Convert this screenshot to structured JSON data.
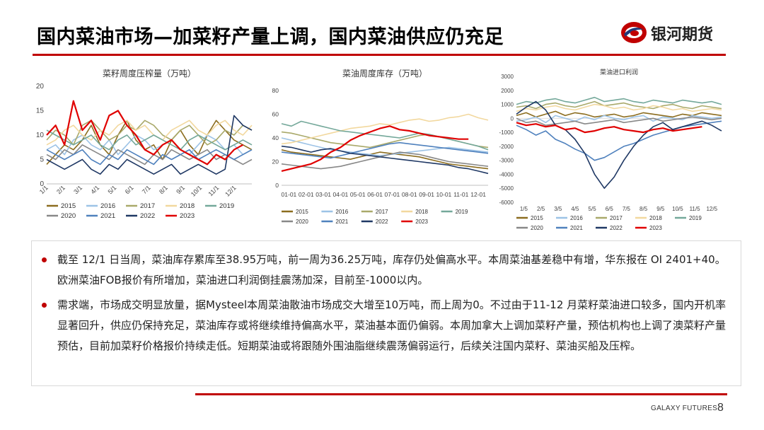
{
  "header": {
    "title": "国内菜油市场—加菜籽产量上调，国内菜油供应仍充足",
    "logo_text": "银河期货"
  },
  "chart_data": [
    {
      "type": "line",
      "title": "菜籽周度压榨量（万吨）",
      "ylim": [
        0,
        20
      ],
      "yticks": [
        "0",
        "5",
        "10",
        "15",
        "20"
      ],
      "x_ticks": [
        "1/1",
        "2/1",
        "3/1",
        "4/1",
        "5/1",
        "6/1",
        "7/1",
        "8/1",
        "9/1",
        "10/1",
        "11/1",
        "12/1"
      ],
      "legend_position": "bottom",
      "series": [
        {
          "name": "2015",
          "color": "#8c6d1f",
          "values": [
            4,
            6,
            8,
            7,
            9,
            12,
            8,
            6,
            10,
            13,
            9,
            7,
            8,
            5,
            9,
            11,
            8,
            6,
            10,
            13,
            11,
            9,
            8,
            7
          ]
        },
        {
          "name": "2016",
          "color": "#9dc3e6",
          "values": [
            7,
            8,
            6,
            9,
            10,
            8,
            7,
            9,
            6,
            8,
            10,
            9,
            7,
            8,
            9,
            7,
            6,
            8,
            10,
            9,
            7,
            8,
            6,
            7
          ]
        },
        {
          "name": "2017",
          "color": "#a9a96a",
          "values": [
            9,
            11,
            10,
            8,
            12,
            13,
            11,
            9,
            10,
            12,
            11,
            13,
            12,
            10,
            9,
            11,
            12,
            10,
            8,
            9,
            11,
            10,
            12,
            11
          ]
        },
        {
          "name": "2018",
          "color": "#f2d89e",
          "values": [
            8,
            9,
            11,
            12,
            10,
            9,
            11,
            10,
            12,
            13,
            11,
            12,
            10,
            9,
            11,
            12,
            13,
            11,
            10,
            12,
            13,
            11,
            10,
            12
          ]
        },
        {
          "name": "2019",
          "color": "#74a89a",
          "values": [
            11,
            10,
            9,
            8,
            9,
            10,
            8,
            7,
            9,
            10,
            8,
            9,
            10,
            9,
            8,
            7,
            9,
            10,
            9,
            8,
            7,
            8,
            9,
            8
          ]
        },
        {
          "name": "2020",
          "color": "#888888",
          "values": [
            6,
            5,
            7,
            6,
            8,
            7,
            6,
            5,
            7,
            6,
            5,
            4,
            6,
            5,
            7,
            6,
            5,
            6,
            7,
            5,
            6,
            5,
            4,
            5
          ]
        },
        {
          "name": "2021",
          "color": "#4f81bd",
          "values": [
            7,
            6,
            5,
            6,
            7,
            5,
            4,
            6,
            5,
            7,
            6,
            5,
            4,
            6,
            5,
            6,
            7,
            5,
            6,
            7,
            6,
            5,
            6,
            7
          ]
        },
        {
          "name": "2022",
          "color": "#1f3864",
          "values": [
            5,
            4,
            3,
            4,
            5,
            3,
            2,
            4,
            3,
            5,
            4,
            3,
            2,
            3,
            4,
            2,
            3,
            4,
            3,
            2,
            3,
            14,
            12,
            11
          ]
        },
        {
          "name": "2023",
          "color": "#e00000",
          "values": [
            10,
            12,
            8,
            17,
            11,
            13,
            9,
            14,
            15,
            12,
            10,
            7,
            6,
            8,
            9,
            7,
            6,
            5,
            4,
            6,
            5,
            7,
            8,
            null
          ]
        }
      ]
    },
    {
      "type": "line",
      "title": "菜油周度库存（万吨）",
      "ylim": [
        0,
        80
      ],
      "yticks": [
        "0",
        "20",
        "40",
        "60",
        "80"
      ],
      "x_ticks": [
        "01-01",
        "02-01",
        "03-01",
        "04-01",
        "05-01",
        "06-01",
        "07-01",
        "08-01",
        "09-01",
        "10-01",
        "11-01",
        "12-01"
      ],
      "legend_position": "bottom",
      "series": [
        {
          "name": "2015",
          "color": "#8c6d1f",
          "values": [
            30,
            28,
            27,
            26,
            25,
            24,
            23,
            22,
            24,
            26,
            28,
            27,
            26,
            25,
            24,
            22,
            20,
            18,
            17,
            16,
            15,
            14
          ]
        },
        {
          "name": "2016",
          "color": "#9dc3e6",
          "values": [
            40,
            38,
            36,
            34,
            32,
            30,
            29,
            28,
            27,
            26,
            25,
            26,
            27,
            28,
            29,
            30,
            31,
            32,
            31,
            30,
            29,
            28
          ]
        },
        {
          "name": "2017",
          "color": "#a9a96a",
          "values": [
            45,
            44,
            42,
            40,
            38,
            36,
            35,
            34,
            33,
            32,
            34,
            36,
            38,
            40,
            42,
            43,
            41,
            39,
            37,
            35,
            33,
            32
          ]
        },
        {
          "name": "2018",
          "color": "#f2d89e",
          "values": [
            35,
            36,
            38,
            40,
            42,
            44,
            46,
            48,
            49,
            50,
            52,
            51,
            53,
            55,
            56,
            54,
            55,
            57,
            58,
            60,
            57,
            55
          ]
        },
        {
          "name": "2019",
          "color": "#74a89a",
          "values": [
            52,
            50,
            54,
            52,
            50,
            48,
            46,
            45,
            44,
            43,
            42,
            41,
            40,
            42,
            44,
            43,
            41,
            39,
            37,
            35,
            33,
            30
          ]
        },
        {
          "name": "2020",
          "color": "#888888",
          "values": [
            18,
            17,
            16,
            15,
            14,
            15,
            16,
            18,
            20,
            22,
            24,
            26,
            28,
            27,
            26,
            24,
            22,
            20,
            19,
            18,
            17,
            16
          ]
        },
        {
          "name": "2021",
          "color": "#4f81bd",
          "values": [
            28,
            27,
            26,
            25,
            24,
            23,
            25,
            27,
            29,
            31,
            33,
            35,
            36,
            35,
            34,
            33,
            32,
            31,
            30,
            29,
            28,
            27
          ]
        },
        {
          "name": "2022",
          "color": "#1f3864",
          "values": [
            33,
            32,
            30,
            28,
            30,
            31,
            29,
            27,
            26,
            25,
            24,
            23,
            22,
            21,
            20,
            19,
            18,
            17,
            15,
            14,
            12,
            10
          ]
        },
        {
          "name": "2023",
          "color": "#e00000",
          "values": [
            12,
            14,
            16,
            18,
            22,
            28,
            32,
            38,
            42,
            45,
            48,
            50,
            47,
            46,
            44,
            42,
            41,
            40,
            39,
            39,
            null,
            null
          ]
        }
      ]
    },
    {
      "type": "line",
      "title": "菜油进口利润",
      "ylim": [
        -6000,
        3000
      ],
      "yticks": [
        "3000",
        "2000",
        "1000",
        "0",
        "-1000",
        "-2000",
        "-3000",
        "-4000",
        "-5000",
        "-6000"
      ],
      "x_ticks": [
        "1/5",
        "2/5",
        "3/5",
        "4/5",
        "5/5",
        "6/5",
        "7/5",
        "8/5",
        "9/5",
        "10/5",
        "11/5",
        "12/5"
      ],
      "legend_position": "bottom",
      "series": [
        {
          "name": "2015",
          "color": "#8c6d1f",
          "values": [
            200,
            400,
            100,
            300,
            500,
            200,
            400,
            300,
            100,
            200,
            300,
            100,
            200,
            400,
            300,
            200,
            100,
            300,
            200,
            400,
            300,
            200
          ]
        },
        {
          "name": "2016",
          "color": "#9dc3e6",
          "values": [
            -200,
            -100,
            100,
            -300,
            200,
            0,
            -200,
            100,
            -100,
            200,
            0,
            -100,
            100,
            200,
            -200,
            100,
            0,
            -100,
            200,
            100,
            0,
            100
          ]
        },
        {
          "name": "2017",
          "color": "#a9a96a",
          "values": [
            800,
            900,
            700,
            1000,
            1100,
            900,
            800,
            1000,
            1200,
            900,
            1000,
            1100,
            900,
            800,
            700,
            900,
            1000,
            800,
            700,
            900,
            800,
            700
          ]
        },
        {
          "name": "2018",
          "color": "#f2d89e",
          "values": [
            500,
            700,
            600,
            800,
            900,
            700,
            600,
            800,
            1000,
            900,
            700,
            800,
            600,
            700,
            900,
            800,
            600,
            700,
            500,
            600,
            700,
            600
          ]
        },
        {
          "name": "2019",
          "color": "#74a89a",
          "values": [
            1000,
            1200,
            1100,
            1300,
            1400,
            1200,
            1100,
            1300,
            1500,
            1200,
            1300,
            1400,
            1200,
            1100,
            1300,
            1200,
            1100,
            1300,
            1200,
            1100,
            1200,
            1000
          ]
        },
        {
          "name": "2020",
          "color": "#888888",
          "values": [
            0,
            -300,
            -200,
            -500,
            -400,
            -300,
            -200,
            -400,
            -300,
            -200,
            -100,
            -300,
            -200,
            -100,
            0,
            -200,
            -100,
            0,
            100,
            0,
            -100,
            0
          ]
        },
        {
          "name": "2021",
          "color": "#4f81bd",
          "values": [
            -500,
            -800,
            -1200,
            -900,
            -1500,
            -1800,
            -2200,
            -2500,
            -3000,
            -2800,
            -2400,
            -2000,
            -1800,
            -1500,
            -1200,
            -1000,
            -800,
            -600,
            -500,
            -400,
            -300,
            -200
          ]
        },
        {
          "name": "2022",
          "color": "#1f3864",
          "values": [
            300,
            800,
            1200,
            600,
            -500,
            -800,
            -1500,
            -2500,
            -4000,
            -5000,
            -4200,
            -3000,
            -2000,
            -1200,
            -600,
            -300,
            -800,
            -600,
            -400,
            -200,
            -500,
            -900
          ]
        },
        {
          "name": "2023",
          "color": "#e00000",
          "values": [
            -300,
            -500,
            -400,
            -600,
            -500,
            -800,
            -700,
            -1000,
            -900,
            -700,
            -600,
            -800,
            -900,
            -1000,
            -800,
            -700,
            -900,
            -800,
            -700,
            -600,
            null,
            null
          ]
        }
      ]
    }
  ],
  "bullets": [
    "截至 12/1 日当周，菜油库存累库至38.95万吨，前一周为36.25万吨，库存仍处偏高水平。本周菜油基差稳中有增，华东报在 OI 2401+40。欧洲菜油FOB报价有所增加，菜油进口利润倒挂震荡加深，目前至-1000以内。",
    "需求端，市场成交明显放量，据Mysteel本周菜油散油市场成交大增至10万吨，而上周为0。不过由于11-12 月菜籽菜油进口较多，国内开机率显著回升，供应仍保持充足，菜油库存或将继续维持偏高水平，菜油基本面仍偏弱。本周加拿大上调加菜籽产量，预估机构也上调了澳菜籽产量预估，目前加菜籽价格报价持续走低。短期菜油或将跟随外围油脂继续震荡偏弱运行，后续关注国内菜籽、菜油买船及压榨。"
  ],
  "footer": {
    "brand": "GALAXY FUTURES",
    "page_number": "8"
  }
}
